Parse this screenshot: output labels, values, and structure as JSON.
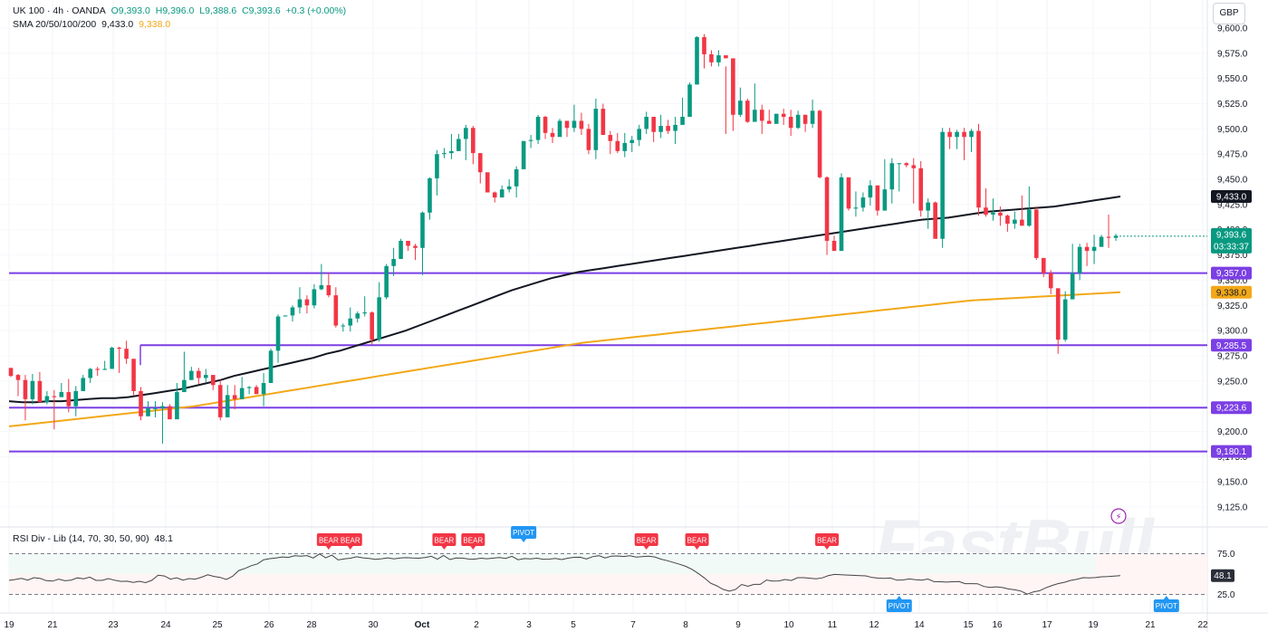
{
  "header": {
    "symbol": "UK 100 · 4h · OANDA",
    "open": "O9,393.0",
    "high": "H9,396.0",
    "low": "L9,388.6",
    "close": "C9,393.6",
    "change": "+0.3 (+0.00%)",
    "sma_label": "SMA 20/50/100/200",
    "sma_value_1": "9,433.0",
    "sma_value_2": "9,338.0",
    "currency": "GBP"
  },
  "rsi_legend": {
    "label": "RSI Div - Lib (14, 70, 30, 50, 90)",
    "value": "48.1"
  },
  "watermark": "FastBull",
  "colors": {
    "up": "#089981",
    "down": "#f23645",
    "sma_dark": "#131722",
    "sma_gold": "#f2a818",
    "level": "#7b3fe4",
    "bear": "#f23645",
    "pivot": "#2196f3"
  },
  "chart_data": {
    "type": "candlestick",
    "title": "UK 100 · 4h · OANDA",
    "y_range": [
      9100,
      9600
    ],
    "y_ticks": [
      9125,
      9150,
      9175,
      9200,
      9225,
      9250,
      9275,
      9300,
      9325,
      9350,
      9375,
      9400,
      9425,
      9450,
      9475,
      9500,
      9525,
      9550,
      9575,
      9600
    ],
    "x_tick_labels": [
      "19",
      "21",
      "23",
      "24",
      "25",
      "26",
      "28",
      "30",
      "Oct",
      "2",
      "3",
      "5",
      "7",
      "8",
      "9",
      "10",
      "11",
      "12",
      "14",
      "15",
      "16",
      "17",
      "19",
      "21",
      "22"
    ],
    "candles": [
      [
        9263,
        9255,
        9256,
        9254
      ],
      [
        9256,
        9251,
        9257,
        9235
      ],
      [
        9251,
        9232,
        9256,
        9211
      ],
      [
        9232,
        9250,
        9257,
        9227
      ],
      [
        9250,
        9229,
        9259,
        9229
      ],
      [
        9229,
        9235,
        9240,
        9227
      ],
      [
        9235,
        9234,
        9241,
        9202
      ],
      [
        9234,
        9239,
        9248,
        9237
      ],
      [
        9239,
        9225,
        9252,
        9219
      ],
      [
        9225,
        9240,
        9245,
        9215
      ],
      [
        9240,
        9253,
        9256,
        9240
      ],
      [
        9253,
        9262,
        9263,
        9248
      ],
      [
        9262,
        9261,
        9264,
        9255
      ],
      [
        9261,
        9262,
        9270,
        9261
      ],
      [
        9262,
        9283,
        9284,
        9262
      ],
      [
        9283,
        9282,
        9284,
        9258
      ],
      [
        9282,
        9272,
        9290,
        9267
      ],
      [
        9272,
        9240,
        9272,
        9236
      ],
      [
        9240,
        9215,
        9244,
        9211
      ],
      [
        9215,
        9223,
        9230,
        9218
      ],
      [
        9223,
        9223,
        9230,
        9214
      ],
      [
        9223,
        9225,
        9229,
        9188
      ],
      [
        9225,
        9212,
        9227,
        9213
      ],
      [
        9212,
        9239,
        9248,
        9213
      ],
      [
        9239,
        9251,
        9279,
        9250
      ],
      [
        9251,
        9260,
        9264,
        9251
      ],
      [
        9260,
        9253,
        9263,
        9247
      ],
      [
        9253,
        9256,
        9262,
        9249
      ],
      [
        9256,
        9246,
        9256,
        9241
      ],
      [
        9246,
        9214,
        9251,
        9211
      ],
      [
        9214,
        9236,
        9246,
        9214
      ],
      [
        9236,
        9232,
        9246,
        9222
      ],
      [
        9232,
        9243,
        9254,
        9234
      ],
      [
        9243,
        9244,
        9245,
        9237
      ],
      [
        9244,
        9237,
        9246,
        9237
      ],
      [
        9237,
        9248,
        9258,
        9225
      ],
      [
        9248,
        9280,
        9282,
        9248
      ],
      [
        9280,
        9314,
        9316,
        9268
      ],
      [
        9314,
        9315,
        9315,
        9314
      ],
      [
        9315,
        9323,
        9325,
        9309
      ],
      [
        9323,
        9331,
        9343,
        9317
      ],
      [
        9331,
        9325,
        9335,
        9317
      ],
      [
        9325,
        9341,
        9346,
        9322
      ],
      [
        9341,
        9345,
        9366,
        9340
      ],
      [
        9345,
        9335,
        9357,
        9333
      ],
      [
        9335,
        9305,
        9343,
        9303
      ],
      [
        9305,
        9305,
        9307,
        9299
      ],
      [
        9305,
        9312,
        9323,
        9299
      ],
      [
        9312,
        9317,
        9319,
        9308
      ],
      [
        9317,
        9318,
        9334,
        9314
      ],
      [
        9318,
        9291,
        9319,
        9286
      ],
      [
        9291,
        9333,
        9348,
        9289
      ],
      [
        9333,
        9364,
        9366,
        9331
      ],
      [
        9364,
        9371,
        9382,
        9354
      ],
      [
        9371,
        9389,
        9391,
        9386
      ],
      [
        9389,
        9384,
        9389,
        9379
      ],
      [
        9384,
        9382,
        9386,
        9370
      ],
      [
        9382,
        9417,
        9418,
        9355
      ],
      [
        9417,
        9451,
        9452,
        9410
      ],
      [
        9451,
        9475,
        9479,
        9434
      ],
      [
        9475,
        9476,
        9481,
        9471
      ],
      [
        9476,
        9478,
        9495,
        9470
      ],
      [
        9478,
        9490,
        9495,
        9488
      ],
      [
        9490,
        9501,
        9504,
        9469
      ],
      [
        9501,
        9476,
        9503,
        9465
      ],
      [
        9476,
        9457,
        9463,
        9446
      ],
      [
        9457,
        9437,
        9439,
        9440
      ],
      [
        9437,
        9432,
        9438,
        9427
      ],
      [
        9432,
        9440,
        9444,
        9432
      ],
      [
        9440,
        9443,
        9450,
        9437
      ],
      [
        9443,
        9460,
        9463,
        9432
      ],
      [
        9460,
        9488,
        9488,
        9464
      ],
      [
        9488,
        9489,
        9494,
        9481
      ],
      [
        9489,
        9512,
        9514,
        9485
      ],
      [
        9512,
        9496,
        9513,
        9490
      ],
      [
        9496,
        9492,
        9501,
        9486
      ],
      [
        9492,
        9508,
        9510,
        9499
      ],
      [
        9508,
        9501,
        9507,
        9492
      ],
      [
        9501,
        9508,
        9524,
        9497
      ],
      [
        9508,
        9500,
        9516,
        9494
      ],
      [
        9500,
        9479,
        9505,
        9475
      ],
      [
        9479,
        9520,
        9530,
        9470
      ],
      [
        9520,
        9494,
        9525,
        9498
      ],
      [
        9494,
        9488,
        9498,
        9475
      ],
      [
        9488,
        9478,
        9496,
        9476
      ],
      [
        9478,
        9486,
        9496,
        9472
      ],
      [
        9486,
        9489,
        9493,
        9477
      ],
      [
        9489,
        9500,
        9504,
        9483
      ],
      [
        9500,
        9512,
        9517,
        9495
      ],
      [
        9512,
        9497,
        9506,
        9487
      ],
      [
        9497,
        9503,
        9514,
        9491
      ],
      [
        9503,
        9498,
        9509,
        9495
      ],
      [
        9498,
        9504,
        9512,
        9485
      ],
      [
        9504,
        9512,
        9531,
        9505
      ],
      [
        9512,
        9544,
        9546,
        9513
      ],
      [
        9544,
        9591,
        9592,
        9553
      ],
      [
        9591,
        9574,
        9594,
        9560
      ],
      [
        9574,
        9566,
        9578,
        9562
      ],
      [
        9566,
        9573,
        9578,
        9562
      ],
      [
        9573,
        9570,
        9562,
        9495
      ],
      [
        9570,
        9514,
        9546,
        9498
      ],
      [
        9514,
        9528,
        9541,
        9512
      ],
      [
        9528,
        9507,
        9530,
        9506
      ],
      [
        9507,
        9519,
        9545,
        9515
      ],
      [
        9519,
        9508,
        9524,
        9495
      ],
      [
        9508,
        9505,
        9519,
        9506
      ],
      [
        9505,
        9515,
        9515,
        9506
      ],
      [
        9515,
        9512,
        9520,
        9504
      ],
      [
        9512,
        9501,
        9519,
        9493
      ],
      [
        9501,
        9514,
        9518,
        9500
      ],
      [
        9514,
        9505,
        9514,
        9497
      ],
      [
        9505,
        9518,
        9529,
        9501
      ],
      [
        9518,
        9452,
        9519,
        9451
      ],
      [
        9452,
        9389,
        9453,
        9375
      ],
      [
        9389,
        9379,
        9394,
        9381
      ],
      [
        9379,
        9452,
        9456,
        9407
      ],
      [
        9452,
        9421,
        9450,
        9419
      ],
      [
        9421,
        9422,
        9438,
        9413
      ],
      [
        9422,
        9432,
        9437,
        9418
      ],
      [
        9432,
        9444,
        9449,
        9424
      ],
      [
        9444,
        9419,
        9433,
        9414
      ],
      [
        9419,
        9440,
        9470,
        9419
      ],
      [
        9440,
        9466,
        9471,
        9426
      ],
      [
        9466,
        9466,
        9466,
        9438
      ],
      [
        9466,
        9464,
        9467,
        9462
      ],
      [
        9464,
        9461,
        9471,
        9426
      ],
      [
        9461,
        9419,
        9468,
        9413
      ],
      [
        9419,
        9427,
        9431,
        9401
      ],
      [
        9427,
        9391,
        9428,
        9397
      ],
      [
        9391,
        9497,
        9501,
        9382
      ],
      [
        9497,
        9492,
        9501,
        9480
      ],
      [
        9492,
        9497,
        9499,
        9480
      ],
      [
        9497,
        9492,
        9501,
        9469
      ],
      [
        9492,
        9498,
        9500,
        9477
      ],
      [
        9498,
        9422,
        9505,
        9414
      ],
      [
        9422,
        9415,
        9441,
        9413
      ],
      [
        9415,
        9417,
        9431,
        9409
      ],
      [
        9417,
        9414,
        9423,
        9404
      ],
      [
        9414,
        9406,
        9415,
        9398
      ],
      [
        9406,
        9410,
        9418,
        9401
      ],
      [
        9410,
        9404,
        9434,
        9404
      ],
      [
        9404,
        9420,
        9443,
        9403
      ],
      [
        9420,
        9372,
        9423,
        9370
      ],
      [
        9372,
        9357,
        9360,
        9353
      ],
      [
        9357,
        9342,
        9360,
        9336
      ],
      [
        9342,
        9291,
        9340,
        9277
      ],
      [
        9291,
        9331,
        9339,
        9289
      ],
      [
        9331,
        9357,
        9386,
        9332
      ],
      [
        9357,
        9383,
        9386,
        9350
      ],
      [
        9383,
        9379,
        9387,
        9364
      ],
      [
        9379,
        9383,
        9395,
        9366
      ],
      [
        9383,
        9393,
        9395,
        9386
      ],
      [
        9393,
        9392,
        9415,
        9382
      ],
      [
        9392,
        9394,
        9396,
        9389
      ]
    ],
    "series": [
      {
        "name": "SMA dark",
        "values": [
          9230,
          9229,
          9229,
          9230,
          9230,
          9231,
          9232,
          9233,
          9233,
          9234,
          9236,
          9238,
          9240,
          9242,
          9245,
          9248,
          9251,
          9255,
          9258,
          9261,
          9264,
          9267,
          9270,
          9273,
          9277,
          9280,
          9284,
          9288,
          9292,
          9296,
          9300,
          9305,
          9310,
          9315,
          9320,
          9325,
          9330,
          9335,
          9340,
          9344,
          9348,
          9352,
          9355,
          9358,
          9360,
          9362,
          9364,
          9366,
          9368,
          9370,
          9372,
          9374,
          9376,
          9378,
          9380,
          9382,
          9384,
          9386,
          9388,
          9390,
          9392,
          9394,
          9396,
          9398,
          9400,
          9402,
          9404,
          9406,
          9408,
          9410,
          9411,
          9412,
          9414,
          9416,
          9418,
          9419,
          9420,
          9421,
          9422,
          9423,
          9425,
          9427,
          9429,
          9431,
          9433
        ]
      },
      {
        "name": "SMA gold",
        "values": [
          9205,
          9207,
          9209,
          9211,
          9213,
          9215,
          9217,
          9219,
          9221,
          9223,
          9225,
          9228,
          9231,
          9234,
          9237,
          9240,
          9243,
          9246,
          9249,
          9252,
          9255,
          9258,
          9261,
          9264,
          9267,
          9270,
          9273,
          9276,
          9279,
          9282,
          9285,
          9288,
          9290,
          9292,
          9294,
          9296,
          9298,
          9300,
          9302,
          9304,
          9306,
          9308,
          9310,
          9312,
          9314,
          9316,
          9318,
          9320,
          9322,
          9324,
          9326,
          9328,
          9330,
          9331,
          9332,
          9333,
          9334,
          9335,
          9336,
          9337,
          9338
        ]
      }
    ],
    "levels": [
      {
        "label": "9,357.0",
        "value": 9357
      },
      {
        "label": "9,285.5",
        "value": 9285.5
      },
      {
        "label": "9,223.6",
        "value": 9223.6
      },
      {
        "label": "9,180.1",
        "value": 9180.1
      }
    ],
    "price_labels": [
      {
        "label": "9,433.0",
        "value": 9433,
        "color": "#131722"
      },
      {
        "label": "9,393.6",
        "sublabel": "03:33:37",
        "value": 9393.6,
        "color": "#089981"
      },
      {
        "label": "9,338.0",
        "value": 9338,
        "color": "#f2a818"
      }
    ],
    "rsi": {
      "range": [
        10,
        90
      ],
      "ticks": [
        75.0,
        25.0
      ],
      "tick_labels": [
        "75.0",
        "25.0"
      ],
      "current": 48.1,
      "current_label": "48.1",
      "values": [
        42.2,
        43.3,
        44.7,
        42.6,
        45.5,
        44.7,
        41.9,
        41.3,
        43.7,
        41.8,
        42.6,
        45.3,
        44.2,
        46.2,
        42.2,
        42.2,
        44.4,
        42.5,
        41.0,
        41.2,
        39.7,
        41.1,
        39.5,
        42.3,
        48.6,
        47.7,
        43.8,
        45.4,
        42.6,
        44.4,
        43.8,
        46.1,
        49.1,
        47.1,
        45.9,
        43.3,
        47.2,
        54.3,
        56.9,
        60.2,
        62.4,
        67.6,
        68.9,
        69.7,
        71.0,
        70.4,
        72.5,
        71.9,
        72.7,
        69.7,
        74.8,
        69.9,
        73.2,
        67.3,
        68.7,
        69.5,
        71.2,
        69.9,
        69.1,
        68.0,
        68.8,
        69.9,
        68.6,
        69.7,
        70.1,
        69.7,
        69.5,
        70.2,
        71.8,
        68.2,
        72.8,
        67.8,
        69.7,
        69.6,
        68.4,
        68.3,
        69.4,
        68.8,
        69.6,
        70.3,
        69.2,
        71.8,
        67.6,
        69.0,
        68.7,
        69.4,
        68.2,
        68.3,
        69.1,
        67.8,
        69.5,
        70.5,
        70.7,
        68.6,
        71.3,
        72.6,
        69.8,
        71.9,
        72.2,
        71.6,
        72.5,
        70.8,
        71.4,
        71.9,
        71.0,
        68.3,
        66.4,
        64.2,
        62.0,
        59.4,
        55.8,
        50.8,
        45.2,
        38.8,
        35.6,
        31.2,
        29.0,
        31.0,
        37.2,
        35.0,
        37.3,
        37.3,
        42.7,
        41.4,
        41.6,
        43.3,
        42.1,
        45.6,
        45.6,
        44.9,
        44.2,
        45.3,
        48.2,
        49.6,
        49.2,
        48.8,
        48.4,
        48.1,
        47.8,
        45.8,
        45.0,
        44.8,
        45.1,
        42.4,
        42.8,
        44.0,
        43.0,
        42.6,
        43.9,
        40.7,
        40.6,
        40.1,
        40.5,
        40.8,
        38.2,
        38.2,
        38.1,
        34.8,
        33.7,
        34.3,
        33.4,
        31.7,
        30.7,
        29.1,
        25.3,
        28.1,
        29.6,
        33.1,
        36.0,
        38.3,
        39.9,
        42.2,
        43.7,
        45.6,
        45.2,
        45.7,
        46.7,
        46.9,
        47.4,
        48.1
      ],
      "markers": [
        {
          "type": "BEAR",
          "index": 44
        },
        {
          "type": "BEAR",
          "index": 47
        },
        {
          "type": "BEAR",
          "index": 60
        },
        {
          "type": "BEAR",
          "index": 64
        },
        {
          "type": "PIVOT",
          "index": 71,
          "position": "top"
        },
        {
          "type": "BEAR",
          "index": 88
        },
        {
          "type": "BEAR",
          "index": 95
        },
        {
          "type": "BEAR",
          "index": 113
        },
        {
          "type": "PIVOT",
          "index": 123,
          "position": "bottom"
        },
        {
          "type": "PIVOT",
          "index": 160,
          "position": "bottom"
        }
      ]
    }
  }
}
